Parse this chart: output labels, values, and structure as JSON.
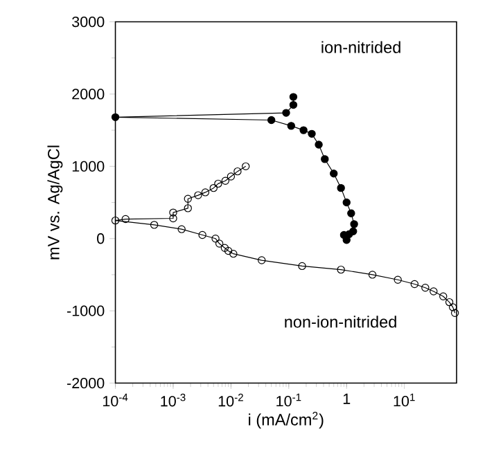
{
  "chart_data": {
    "type": "line",
    "xlabel": "i (mA/cm$^{2}$)",
    "ylabel": "mV vs. Ag/AgCl",
    "log": "x",
    "marker": "circle",
    "grid": false,
    "legend": false,
    "xlim": [
      0.0001,
      80
    ],
    "ylim": [
      -2000,
      3000
    ],
    "xticks": [
      {
        "value": 0.0001,
        "label": "10$^{-4}$"
      },
      {
        "value": 0.001,
        "label": "10$^{-3}$"
      },
      {
        "value": 0.01,
        "label": "10$^{-2}$"
      },
      {
        "value": 0.1,
        "label": "10$^{-1}$"
      },
      1,
      {
        "value": 10,
        "label": "10$^{1}$"
      }
    ],
    "yticks": [
      -2000,
      -1000,
      0,
      1000,
      2000,
      3000
    ],
    "series": [
      {
        "name": "ion-nitrided",
        "color": "#000000",
        "x": [
          0.12,
          0.12,
          0.09,
          0.0001,
          0.05,
          0.11,
          0.18,
          0.25,
          0.33,
          0.42,
          0.6,
          0.8,
          1.0,
          1.2,
          1.35,
          1.3,
          1.1,
          0.9,
          1.0
        ],
        "values": [
          1960,
          1850,
          1740,
          1680,
          1640,
          1560,
          1500,
          1450,
          1300,
          1100,
          900,
          700,
          500,
          350,
          200,
          100,
          60,
          50,
          -20
        ]
      },
      {
        "name": "non-ion-nitrided",
        "color": "#000000",
        "x": [
          0.018,
          0.013,
          0.01,
          0.008,
          0.006,
          0.005,
          0.0036,
          0.0027,
          0.0018,
          0.0018,
          0.001,
          0.001,
          0.00015,
          0.0001,
          0.00047,
          0.0014,
          0.0032,
          0.0054,
          0.0063,
          0.0078,
          0.009,
          0.011,
          0.034,
          0.17,
          0.8,
          2.8,
          7.7,
          15,
          23,
          32,
          47,
          60,
          69,
          75
        ],
        "values": [
          1000,
          930,
          860,
          800,
          760,
          700,
          640,
          600,
          550,
          420,
          360,
          280,
          270,
          250,
          190,
          130,
          50,
          0,
          -70,
          -130,
          -170,
          -210,
          -300,
          -380,
          -430,
          -500,
          -570,
          -630,
          -680,
          -730,
          -800,
          -880,
          -950,
          -1030
        ]
      }
    ]
  }
}
